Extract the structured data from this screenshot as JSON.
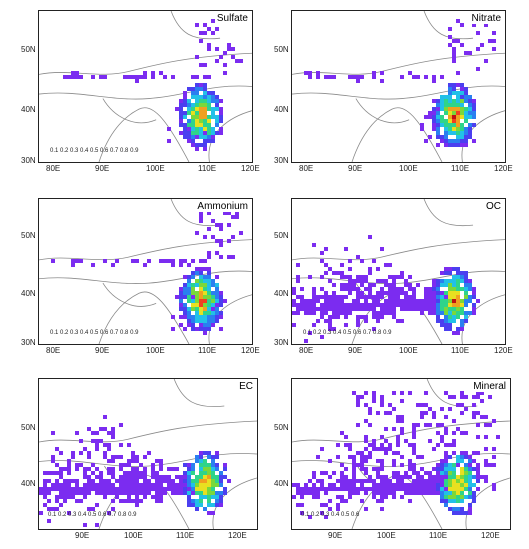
{
  "panels": [
    {
      "title": "Sulfate",
      "yticks": [
        "50N",
        "40N",
        "30N"
      ],
      "xticks": [
        "80E",
        "90E",
        "100E",
        "110E",
        "120E"
      ],
      "colorbar": "0.1 0.2 0.3 0.4 0.5 0.6 0.7 0.8 0.9"
    },
    {
      "title": "Nitrate",
      "yticks": [
        "50N",
        "40N",
        "30N"
      ],
      "xticks": [
        "80E",
        "90E",
        "100E",
        "110E",
        "120E"
      ],
      "colorbar": ""
    },
    {
      "title": "Ammonium",
      "yticks": [
        "50N",
        "40N",
        "30N"
      ],
      "xticks": [
        "80E",
        "90E",
        "100E",
        "110E",
        "120E"
      ],
      "colorbar": "0.1 0.2 0.3 0.4 0.5 0.6 0.7 0.8 0.9"
    },
    {
      "title": "OC",
      "yticks": [
        "50N",
        "40N",
        "30N"
      ],
      "xticks": [
        "80E",
        "90E",
        "100E",
        "110E",
        "120E"
      ],
      "colorbar": "0.1 0.2 0.3 0.4 0.5 0.6 0.7 0.8 0.9"
    },
    {
      "title": "EC",
      "yticks": [
        "50N",
        "40N"
      ],
      "xticks": [
        "90E",
        "100E",
        "110E",
        "120E"
      ],
      "colorbar": "0.1 0.2 0.3 0.4 0.5 0.6 0.7 0.8 0.9"
    },
    {
      "title": "Mineral",
      "yticks": [
        "50N",
        "40N"
      ],
      "xticks": [
        "90E",
        "100E",
        "110E",
        "120E"
      ],
      "colorbar": "0.1 0.2 0.3 0.4 0.5 0.6"
    }
  ],
  "colors": {
    "scale": [
      "#7b2cf0",
      "#4b3ff0",
      "#2a7ff0",
      "#22c0e8",
      "#2fd48a",
      "#7ad83a",
      "#e8e020",
      "#f0a020",
      "#f04020",
      "#c01010"
    ]
  }
}
